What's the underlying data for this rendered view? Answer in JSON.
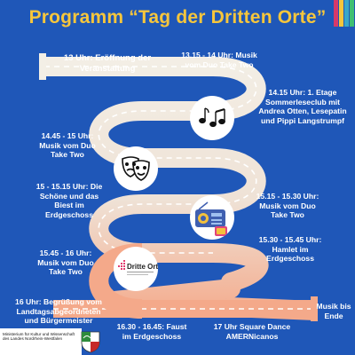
{
  "title": "Programm “Tag der Dritten Orte”",
  "colors": {
    "background": "#1f57b8",
    "title": "#f6c63c",
    "road_top": "#f3efe6",
    "road_bottom": "#f4a98a",
    "stripes": [
      "#d6396b",
      "#f6c63c",
      "#3aa7c9",
      "#3fbf73"
    ]
  },
  "schedule": {
    "e1": "13 Uhr: Eröffnung der Veranstaltung",
    "e2": "13.15 - 14 Uhr: Musik vom Duo Take Two",
    "e3": "14.15 Uhr: 1. Etage Sommerleseclub mit Andrea Otten, Lesepatin und Pippi Langstrumpf",
    "e4": "14.45 - 15 Uhr: Musik vom Duo Take Two",
    "e5": "15 - 15.15 Uhr: Die Schöne und das Biest im Erdgeschoss",
    "e6": "15.15 - 15.30 Uhr: Musik vom Duo Take Two",
    "e7": "15.30 - 15.45 Uhr: Hamlet im Erdgeschoss",
    "e8": "15.45 - 16 Uhr: Musik vom Duo Take Two",
    "e9": "16 Uhr: Begrüßung vom Landtagsabgeordneten und Bürgermeister",
    "e10": "16.30 - 16.45: Faust im Erdgeschoss",
    "e11": "17 Uhr Square Dance AMERNicanos",
    "e12": "Musik bis Ende"
  },
  "icons": {
    "music": "music-notes-icon",
    "theatre": "theatre-masks-icon",
    "radio": "radio-icon",
    "logo": "dritte-orte-logo"
  },
  "logo_text": "Dritte Orte",
  "ministry": "Ministerium für Kultur und Wissenschaft des Landes Nordrhein-Westfalen"
}
